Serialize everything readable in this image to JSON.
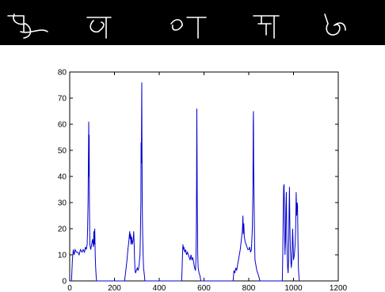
{
  "banner": {
    "background": "#000000",
    "glyph_color": "#ffffff",
    "glyphs": [
      "handwritten-character-1",
      "handwritten-character-2",
      "handwritten-character-3",
      "handwritten-character-4",
      "handwritten-character-5"
    ]
  },
  "chart_data": {
    "type": "line",
    "title": "",
    "xlabel": "",
    "ylabel": "",
    "xlim": [
      0,
      1200
    ],
    "ylim": [
      0,
      80
    ],
    "xticks": [
      0,
      200,
      400,
      600,
      800,
      1000,
      1200
    ],
    "yticks": [
      0,
      10,
      20,
      30,
      40,
      50,
      60,
      70,
      80
    ],
    "grid": false,
    "legend": "none",
    "series": [
      {
        "color": "#0000cc",
        "points": [
          [
            0,
            0
          ],
          [
            8,
            0
          ],
          [
            12,
            8
          ],
          [
            16,
            12
          ],
          [
            20,
            10
          ],
          [
            24,
            12
          ],
          [
            30,
            11
          ],
          [
            36,
            11
          ],
          [
            42,
            10
          ],
          [
            48,
            12
          ],
          [
            55,
            11
          ],
          [
            60,
            12
          ],
          [
            66,
            11
          ],
          [
            70,
            13
          ],
          [
            74,
            12
          ],
          [
            78,
            14
          ],
          [
            80,
            20
          ],
          [
            82,
            30
          ],
          [
            84,
            50
          ],
          [
            85,
            61
          ],
          [
            86,
            40
          ],
          [
            87,
            56
          ],
          [
            88,
            30
          ],
          [
            90,
            14
          ],
          [
            94,
            12
          ],
          [
            98,
            14
          ],
          [
            102,
            16
          ],
          [
            106,
            13
          ],
          [
            108,
            19
          ],
          [
            110,
            14
          ],
          [
            112,
            20
          ],
          [
            114,
            10
          ],
          [
            116,
            5
          ],
          [
            118,
            2
          ],
          [
            120,
            0
          ],
          [
            245,
            0
          ],
          [
            248,
            2
          ],
          [
            252,
            5
          ],
          [
            256,
            8
          ],
          [
            260,
            12
          ],
          [
            264,
            15
          ],
          [
            266,
            17
          ],
          [
            268,
            19
          ],
          [
            270,
            16
          ],
          [
            272,
            18
          ],
          [
            274,
            14
          ],
          [
            276,
            17
          ],
          [
            280,
            14
          ],
          [
            284,
            16
          ],
          [
            286,
            19
          ],
          [
            288,
            14
          ],
          [
            290,
            8
          ],
          [
            292,
            4
          ],
          [
            294,
            3
          ],
          [
            298,
            4
          ],
          [
            302,
            5
          ],
          [
            306,
            4
          ],
          [
            310,
            6
          ],
          [
            314,
            10
          ],
          [
            316,
            18
          ],
          [
            318,
            30
          ],
          [
            319,
            53
          ],
          [
            320,
            45
          ],
          [
            321,
            60
          ],
          [
            322,
            76
          ],
          [
            323,
            50
          ],
          [
            324,
            30
          ],
          [
            326,
            18
          ],
          [
            328,
            10
          ],
          [
            330,
            5
          ],
          [
            334,
            2
          ],
          [
            336,
            0
          ],
          [
            500,
            0
          ],
          [
            502,
            4
          ],
          [
            504,
            10
          ],
          [
            506,
            14
          ],
          [
            508,
            12
          ],
          [
            510,
            13
          ],
          [
            514,
            11
          ],
          [
            518,
            12
          ],
          [
            522,
            10
          ],
          [
            526,
            11
          ],
          [
            530,
            10
          ],
          [
            534,
            9
          ],
          [
            538,
            8
          ],
          [
            542,
            10
          ],
          [
            546,
            8
          ],
          [
            550,
            9
          ],
          [
            554,
            7
          ],
          [
            558,
            5
          ],
          [
            562,
            4
          ],
          [
            564,
            8
          ],
          [
            566,
            20
          ],
          [
            567,
            40
          ],
          [
            568,
            66
          ],
          [
            569,
            50
          ],
          [
            570,
            30
          ],
          [
            572,
            10
          ],
          [
            574,
            5
          ],
          [
            578,
            3
          ],
          [
            582,
            2
          ],
          [
            586,
            0
          ],
          [
            730,
            0
          ],
          [
            732,
            2
          ],
          [
            734,
            4
          ],
          [
            738,
            3
          ],
          [
            742,
            5
          ],
          [
            746,
            4
          ],
          [
            750,
            6
          ],
          [
            754,
            8
          ],
          [
            758,
            10
          ],
          [
            762,
            12
          ],
          [
            766,
            15
          ],
          [
            770,
            18
          ],
          [
            772,
            20
          ],
          [
            774,
            25
          ],
          [
            776,
            18
          ],
          [
            778,
            22
          ],
          [
            780,
            17
          ],
          [
            784,
            15
          ],
          [
            788,
            14
          ],
          [
            792,
            13
          ],
          [
            796,
            12
          ],
          [
            800,
            12
          ],
          [
            804,
            13
          ],
          [
            808,
            11
          ],
          [
            812,
            12
          ],
          [
            816,
            20
          ],
          [
            818,
            30
          ],
          [
            819,
            40
          ],
          [
            820,
            60
          ],
          [
            821,
            65
          ],
          [
            822,
            45
          ],
          [
            824,
            30
          ],
          [
            826,
            15
          ],
          [
            828,
            8
          ],
          [
            832,
            6
          ],
          [
            836,
            4
          ],
          [
            840,
            3
          ],
          [
            844,
            2
          ],
          [
            850,
            0
          ],
          [
            950,
            0
          ],
          [
            952,
            10
          ],
          [
            954,
            25
          ],
          [
            956,
            36
          ],
          [
            958,
            37
          ],
          [
            960,
            20
          ],
          [
            962,
            10
          ],
          [
            964,
            15
          ],
          [
            966,
            28
          ],
          [
            968,
            34
          ],
          [
            970,
            18
          ],
          [
            972,
            10
          ],
          [
            974,
            5
          ],
          [
            976,
            3
          ],
          [
            978,
            8
          ],
          [
            980,
            25
          ],
          [
            982,
            36
          ],
          [
            984,
            20
          ],
          [
            986,
            12
          ],
          [
            988,
            8
          ],
          [
            990,
            5
          ],
          [
            992,
            7
          ],
          [
            994,
            12
          ],
          [
            996,
            20
          ],
          [
            998,
            15
          ],
          [
            1000,
            8
          ],
          [
            1004,
            10
          ],
          [
            1008,
            15
          ],
          [
            1010,
            22
          ],
          [
            1012,
            34
          ],
          [
            1014,
            25
          ],
          [
            1016,
            30
          ],
          [
            1018,
            29
          ],
          [
            1020,
            15
          ],
          [
            1022,
            5
          ],
          [
            1024,
            2
          ],
          [
            1026,
            0
          ]
        ]
      }
    ]
  }
}
